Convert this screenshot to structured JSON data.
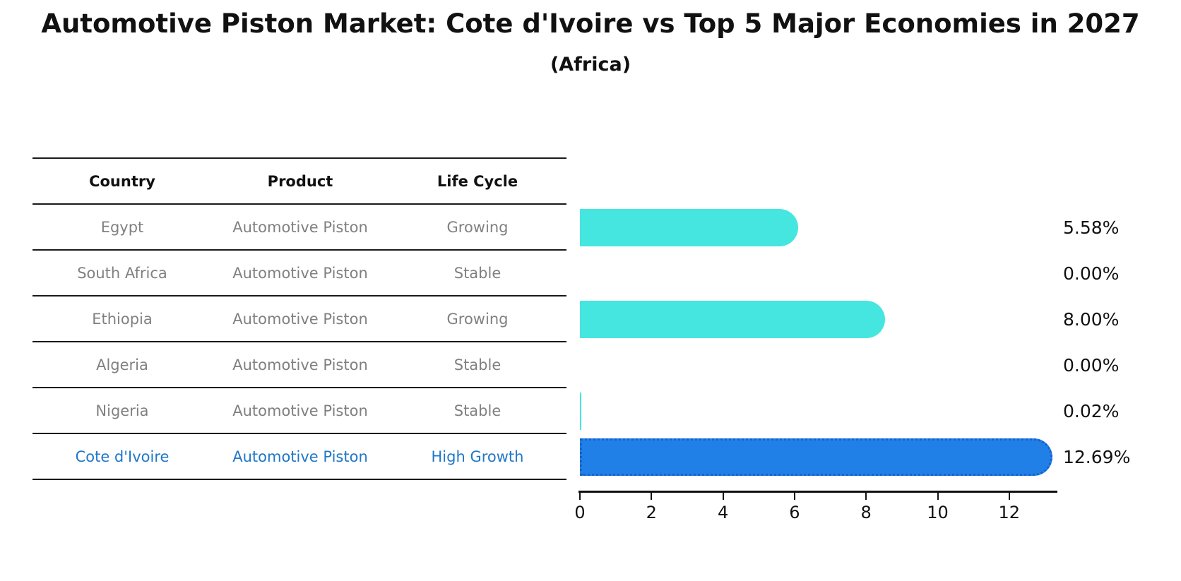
{
  "title": "Automotive Piston Market: Cote d'Ivoire vs Top 5 Major Economies in 2027",
  "subtitle": "(Africa)",
  "table": {
    "headers": [
      "Country",
      "Product",
      "Life Cycle"
    ],
    "rows": [
      {
        "country": "Egypt",
        "product": "Automotive Piston",
        "life_cycle": "Growing",
        "highlighted": false
      },
      {
        "country": "South Africa",
        "product": "Automotive Piston",
        "life_cycle": "Stable",
        "highlighted": false
      },
      {
        "country": "Ethiopia",
        "product": "Automotive Piston",
        "life_cycle": "Growing",
        "highlighted": false
      },
      {
        "country": "Algeria",
        "product": "Automotive Piston",
        "life_cycle": "Stable",
        "highlighted": false
      },
      {
        "country": "Nigeria",
        "product": "Automotive Piston",
        "life_cycle": "Stable",
        "highlighted": false
      },
      {
        "country": "Cote d'Ivoire",
        "product": "Automotive Piston",
        "life_cycle": "High Growth",
        "highlighted": true
      }
    ]
  },
  "chart_data": {
    "type": "bar",
    "orientation": "horizontal",
    "title": "Automotive Piston Market: Cote d'Ivoire vs Top 5 Major Economies in 2027 (Africa)",
    "categories": [
      "Egypt",
      "South Africa",
      "Ethiopia",
      "Algeria",
      "Nigeria",
      "Cote d'Ivoire"
    ],
    "values": [
      5.58,
      0.0,
      8.0,
      0.0,
      0.02,
      12.69
    ],
    "value_labels": [
      "5.58%",
      "0.00%",
      "8.00%",
      "0.00%",
      "0.02%",
      "12.69%"
    ],
    "bar_colors": [
      "#45E6DF",
      "#45E6DF",
      "#45E6DF",
      "#45E6DF",
      "#45E6DF",
      "#2080E8"
    ],
    "highlight_bar_edge_color": "#1462cc",
    "x_ticks": [
      0,
      2,
      4,
      6,
      8,
      10,
      12
    ],
    "xlim": [
      0,
      13.3
    ],
    "xlabel": "",
    "ylabel": "",
    "grid": false,
    "legend": null
  },
  "colors": {
    "bar_cyan": "#45E6DF",
    "bar_blue": "#2080E8",
    "highlight_text": "#2077C8",
    "row_text": "#808080",
    "axis_and_text": "#111111"
  }
}
